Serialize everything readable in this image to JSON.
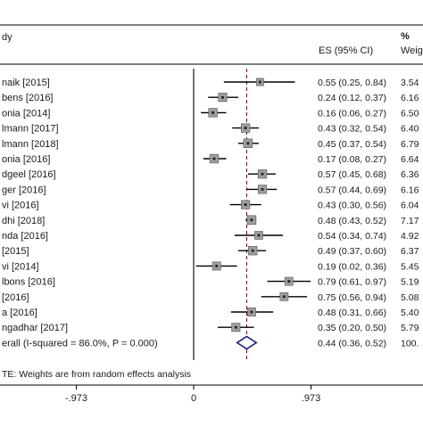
{
  "chart_data": {
    "type": "forest",
    "header": {
      "study": "dy",
      "es": "ES (95% CI)",
      "pct": "%",
      "weight": "Weig"
    },
    "studies": [
      {
        "label": "naik [2015]",
        "es": 0.55,
        "lo": 0.25,
        "hi": 0.84,
        "ci_text": "0.55 (0.25, 0.84)",
        "weight_text": "3.54"
      },
      {
        "label": "bens [2016]",
        "es": 0.24,
        "lo": 0.12,
        "hi": 0.37,
        "ci_text": "0.24 (0.12, 0.37)",
        "weight_text": "6.16"
      },
      {
        "label": "onia [2014]",
        "es": 0.16,
        "lo": 0.06,
        "hi": 0.27,
        "ci_text": "0.16 (0.06, 0.27)",
        "weight_text": "6.50"
      },
      {
        "label": "lmann [2017]",
        "es": 0.43,
        "lo": 0.32,
        "hi": 0.54,
        "ci_text": "0.43 (0.32, 0.54)",
        "weight_text": "6.40"
      },
      {
        "label": "lmann [2018]",
        "es": 0.45,
        "lo": 0.37,
        "hi": 0.54,
        "ci_text": "0.45 (0.37, 0.54)",
        "weight_text": "6.79"
      },
      {
        "label": "onia [2016]",
        "es": 0.17,
        "lo": 0.08,
        "hi": 0.27,
        "ci_text": "0.17 (0.08, 0.27)",
        "weight_text": "6.64"
      },
      {
        "label": "dgeel [2016]",
        "es": 0.57,
        "lo": 0.45,
        "hi": 0.68,
        "ci_text": "0.57 (0.45, 0.68)",
        "weight_text": "6.36"
      },
      {
        "label": "ger [2016]",
        "es": 0.57,
        "lo": 0.44,
        "hi": 0.69,
        "ci_text": "0.57 (0.44, 0.69)",
        "weight_text": "6.16"
      },
      {
        "label": "vi [2016]",
        "es": 0.43,
        "lo": 0.3,
        "hi": 0.56,
        "ci_text": "0.43 (0.30, 0.56)",
        "weight_text": "6.04"
      },
      {
        "label": "dhi [2018]",
        "es": 0.48,
        "lo": 0.43,
        "hi": 0.52,
        "ci_text": "0.48 (0.43, 0.52)",
        "weight_text": "7.17"
      },
      {
        "label": "nda [2016]",
        "es": 0.54,
        "lo": 0.34,
        "hi": 0.74,
        "ci_text": "0.54 (0.34, 0.74)",
        "weight_text": "4.92"
      },
      {
        "label": "[2015]",
        "es": 0.49,
        "lo": 0.37,
        "hi": 0.6,
        "ci_text": "0.49 (0.37, 0.60)",
        "weight_text": "6.37"
      },
      {
        "label": "vi [2014]",
        "es": 0.19,
        "lo": 0.02,
        "hi": 0.36,
        "ci_text": "0.19 (0.02, 0.36)",
        "weight_text": "5.45"
      },
      {
        "label": "lbons [2016]",
        "es": 0.79,
        "lo": 0.61,
        "hi": 0.97,
        "ci_text": "0.79 (0.61, 0.97)",
        "weight_text": "5.19"
      },
      {
        "label": "[2016]",
        "es": 0.75,
        "lo": 0.56,
        "hi": 0.94,
        "ci_text": "0.75 (0.56, 0.94)",
        "weight_text": "5.08"
      },
      {
        "label": "a [2016]",
        "es": 0.48,
        "lo": 0.31,
        "hi": 0.66,
        "ci_text": "0.48 (0.31, 0.66)",
        "weight_text": "5.40"
      },
      {
        "label": "ngadhar [2017]",
        "es": 0.35,
        "lo": 0.2,
        "hi": 0.5,
        "ci_text": "0.35 (0.20, 0.50)",
        "weight_text": "5.79"
      }
    ],
    "overall": {
      "label": "erall  (I-squared = 86.0%, P = 0.000)",
      "es": 0.44,
      "lo": 0.36,
      "hi": 0.52,
      "ci_text": "0.44 (0.36, 0.52)",
      "weight_text": "100."
    },
    "note": "TE: Weights are from random effects analysis",
    "x_ticks": [
      {
        "value": -0.973,
        "label": "-.973"
      },
      {
        "value": 0,
        "label": "0"
      },
      {
        "value": 0.973,
        "label": ".973"
      }
    ],
    "xlim": [
      -1.45,
      1.25
    ],
    "null_line": 0,
    "colors": {
      "line": "#000000",
      "overall_diamond": "#1a237e",
      "reference_line": "#8b0000",
      "box": "#9e9e9e"
    }
  }
}
